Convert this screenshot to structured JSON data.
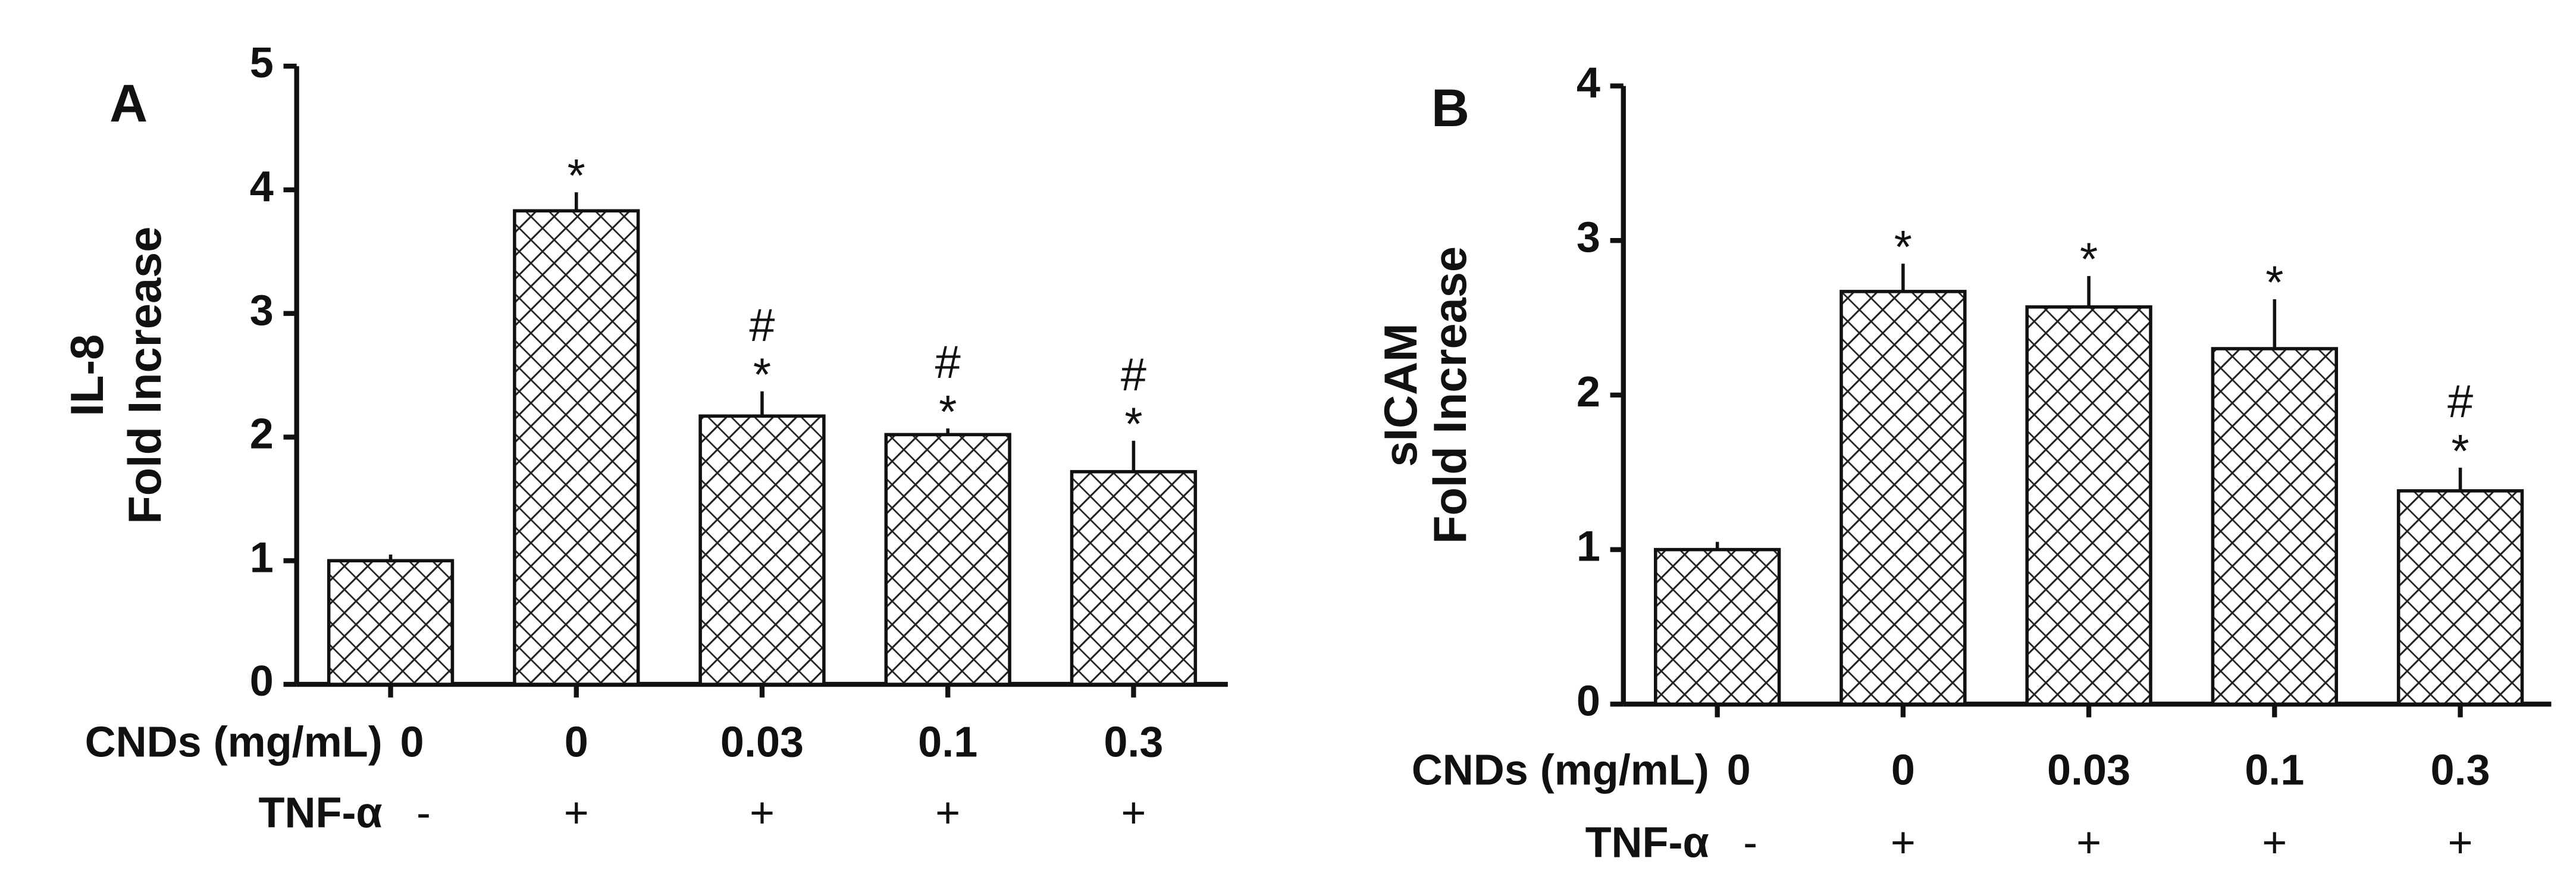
{
  "chart_data": [
    {
      "type": "bar",
      "panel": "A",
      "y_label": [
        "IL-8",
        "Fold Increase"
      ],
      "row_labels": [
        "CNDs (mg/mL)",
        "TNF-α"
      ],
      "categories": [
        "0",
        "0",
        "0.03",
        "0.1",
        "0.3"
      ],
      "tnf": [
        "-",
        "+",
        "+",
        "+",
        "+"
      ],
      "values": [
        1.0,
        3.83,
        2.17,
        2.02,
        1.72
      ],
      "errors": [
        0.05,
        0.15,
        0.2,
        0.05,
        0.25
      ],
      "annotations": [
        [],
        [
          "*"
        ],
        [
          "#",
          "*"
        ],
        [
          "#",
          "*"
        ],
        [
          "#",
          "*"
        ]
      ],
      "ylim": [
        0,
        5
      ],
      "yticks": [
        0,
        1,
        2,
        3,
        4,
        5
      ]
    },
    {
      "type": "bar",
      "panel": "B",
      "y_label": [
        "sICAM",
        "Fold Increase"
      ],
      "row_labels": [
        "CNDs (mg/mL)",
        "TNF-α"
      ],
      "categories": [
        "0",
        "0",
        "0.03",
        "0.1",
        "0.3"
      ],
      "tnf": [
        "-",
        "+",
        "+",
        "+",
        "+"
      ],
      "values": [
        1.0,
        2.67,
        2.57,
        2.3,
        1.38
      ],
      "errors": [
        0.05,
        0.18,
        0.2,
        0.32,
        0.15
      ],
      "annotations": [
        [],
        [
          "*"
        ],
        [
          "*"
        ],
        [
          "*"
        ],
        [
          "#",
          "*"
        ]
      ],
      "ylim": [
        0,
        4
      ],
      "yticks": [
        0,
        1,
        2,
        3,
        4
      ]
    }
  ]
}
